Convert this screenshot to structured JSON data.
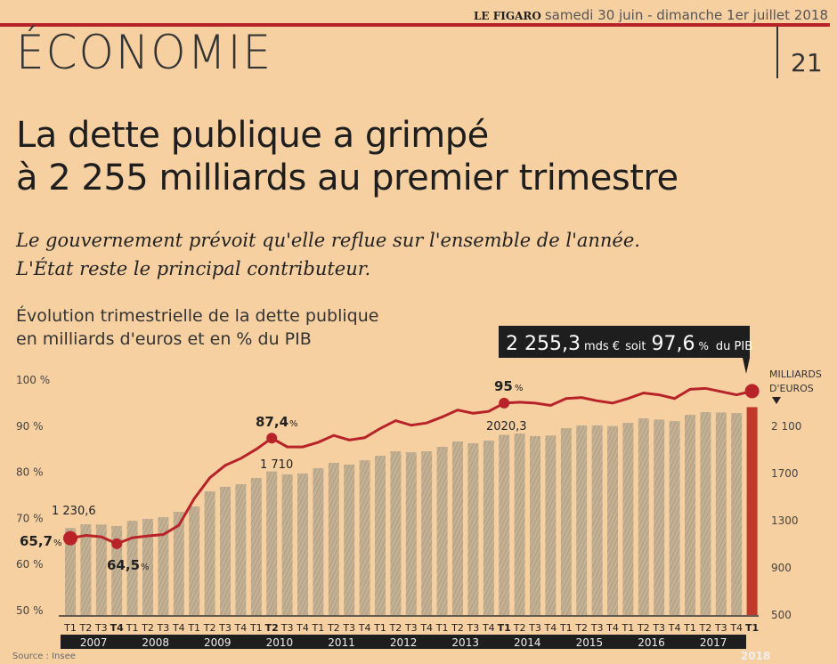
{
  "masthead": {
    "paper": "LE FIGARO",
    "date": "samedi 30 juin - dimanche 1er juillet 2018"
  },
  "section": "ÉCONOMIE",
  "page_number": "21",
  "headline": {
    "line1": "La dette publique a grimpé",
    "line2": "à 2 255 milliards au premier trimestre"
  },
  "subtitle": {
    "line1": "Le gouvernement prévoit qu'elle reflue sur l'ensemble de l'année.",
    "line2": "L'État reste le principal contributeur."
  },
  "caption": {
    "line1": "Évolution trimestrielle de la dette publique",
    "line2": "en milliards d'euros et en % du PIB"
  },
  "colors": {
    "background": "#f7d0a2",
    "accent": "#b8232a",
    "bar": "#b9a78c",
    "dark": "#1e1e1e"
  },
  "chart_data": {
    "type": "bar+line",
    "title": "Évolution trimestrielle de la dette publique en milliards d'euros et en % du PIB",
    "source": "Source : Insee",
    "years": [
      "2007",
      "2008",
      "2009",
      "2010",
      "2011",
      "2012",
      "2013",
      "2014",
      "2015",
      "2016",
      "2017",
      "2018"
    ],
    "quarters": [
      "T1",
      "T2",
      "T3",
      "T4",
      "T1",
      "T2",
      "T3",
      "T4",
      "T1",
      "T2",
      "T3",
      "T4",
      "T1",
      "T2",
      "T3",
      "T4",
      "T1",
      "T2",
      "T3",
      "T4",
      "T1",
      "T2",
      "T3",
      "T4",
      "T1",
      "T2",
      "T3",
      "T4",
      "T1",
      "T2",
      "T3",
      "T4",
      "T1",
      "T2",
      "T3",
      "T4",
      "T1",
      "T2",
      "T3",
      "T4",
      "T1",
      "T2",
      "T3",
      "T4",
      "T1"
    ],
    "highlight_quarters": [
      3,
      13,
      28,
      44
    ],
    "series": [
      {
        "name": "Dette publique (milliards d'euros)",
        "axis": "right",
        "values": [
          1230.6,
          1262,
          1260,
          1247,
          1292,
          1308,
          1322,
          1368,
          1413,
          1541,
          1580,
          1602,
          1655,
          1710,
          1685,
          1693,
          1738,
          1783,
          1768,
          1805,
          1843,
          1881,
          1873,
          1881,
          1919,
          1964,
          1949,
          1972,
          2020.3,
          2032,
          2010,
          2015,
          2077,
          2100,
          2100,
          2095,
          2122,
          2160,
          2150,
          2137,
          2190,
          2213,
          2210,
          2205,
          2255.3
        ]
      },
      {
        "name": "Dette en % du PIB",
        "axis": "left",
        "values": [
          65.7,
          66.3,
          66.0,
          64.5,
          65.8,
          66.2,
          66.5,
          68.5,
          74.3,
          78.8,
          81.5,
          83.0,
          85.0,
          87.4,
          85.5,
          85.5,
          86.5,
          88.0,
          87.0,
          87.5,
          89.5,
          91.2,
          90.2,
          90.7,
          92.0,
          93.5,
          92.8,
          93.2,
          95.0,
          95.2,
          95.0,
          94.5,
          96.0,
          96.2,
          95.5,
          95.0,
          96.0,
          97.2,
          96.8,
          96.0,
          98.0,
          98.2,
          97.5,
          96.8,
          97.6
        ]
      }
    ],
    "left_axis": {
      "ticks": [
        "100 %",
        "90 %",
        "80 %",
        "70 %",
        "60 %",
        "50 %"
      ],
      "values": [
        100,
        90,
        80,
        70,
        60,
        50
      ],
      "range": [
        50,
        100
      ]
    },
    "right_axis": {
      "label1": "MILLIARDS",
      "label2": "D'EUROS",
      "ticks": [
        "2 100",
        "1700",
        "1300",
        "900",
        "500"
      ],
      "values": [
        2100,
        1700,
        1300,
        900,
        500
      ],
      "range": [
        500,
        2250
      ]
    },
    "annotations": {
      "start_value": "1 230,6",
      "start_pct": "65,7",
      "low_pct": "64,5",
      "mid_pct": "87,4",
      "mid_value": "1 710",
      "pct_2014": "95",
      "value_2014": "2020,3",
      "callout_value": "2 255,3",
      "callout_unit": "mds €",
      "callout_soit": "soit",
      "callout_pct": "97,6",
      "callout_pct_sign": "%",
      "callout_pib": "du PIB",
      "pct_sign": "%"
    }
  }
}
